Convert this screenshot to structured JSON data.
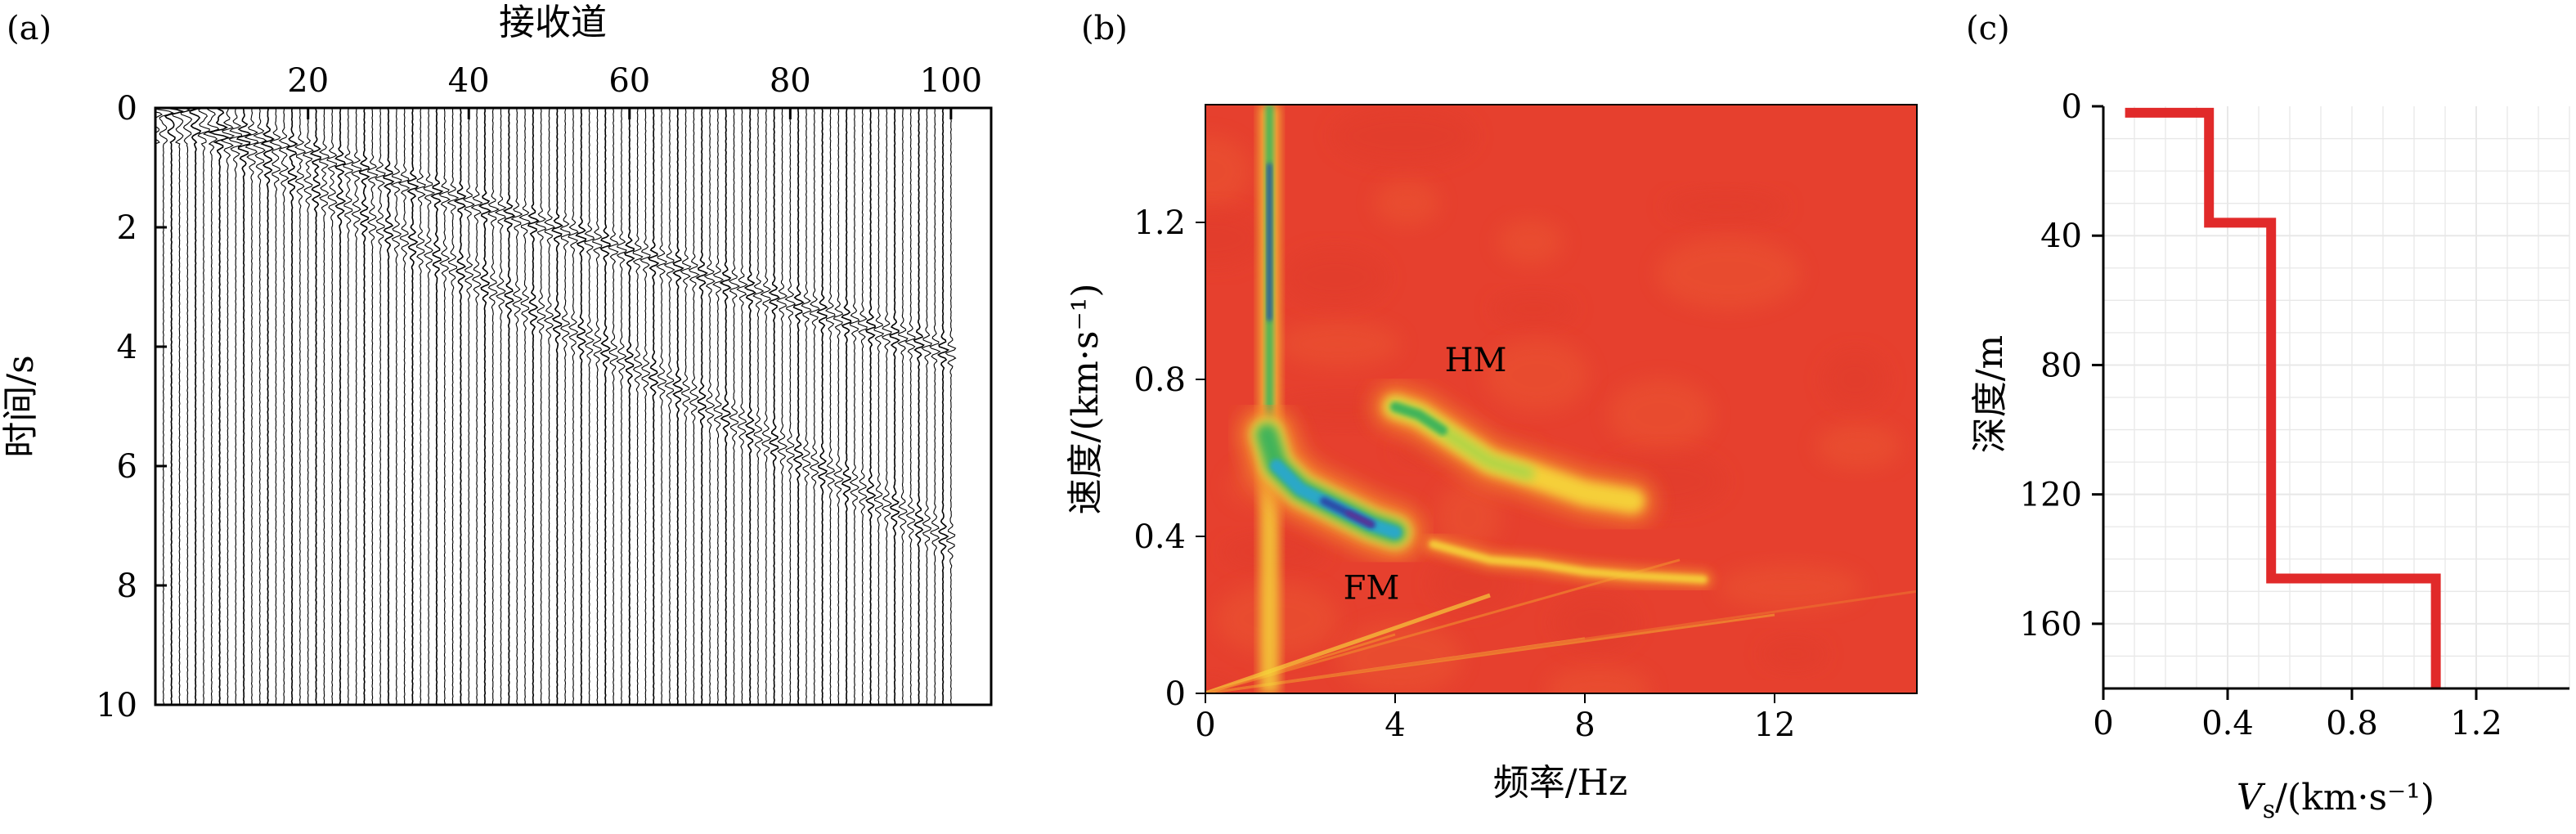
{
  "chart_data": [
    {
      "panel": "(a)",
      "type": "heatmap",
      "xlabel": "接收道",
      "ylabel": "时间/s",
      "xlim": [
        1,
        105
      ],
      "ylim": [
        0,
        10
      ],
      "y_inverted": true,
      "x_axis_position": "top",
      "xticks": [
        20,
        40,
        60,
        80,
        100
      ],
      "yticks": [
        0,
        2,
        4,
        6,
        8,
        10
      ],
      "trace_count": 100,
      "wave_fronts": [
        {
          "start_trace": 3,
          "start_time": 0.05,
          "end_trace": 100,
          "end_time": 4.1
        },
        {
          "start_trace": 3,
          "start_time": 0.05,
          "end_trace": 100,
          "end_time": 7.25
        }
      ]
    },
    {
      "panel": "(b)",
      "type": "heatmap",
      "xlabel": "频率/Hz",
      "ylabel": "速度/(km·s⁻¹)",
      "xlim": [
        0,
        15
      ],
      "ylim": [
        0,
        1.5
      ],
      "xticks": [
        0,
        4,
        8,
        12
      ],
      "yticks": [
        0,
        0.4,
        0.8,
        1.2
      ],
      "annotations": [
        {
          "text": "HM",
          "x": 5.7,
          "y": 0.85
        },
        {
          "text": "FM",
          "x": 3.5,
          "y": 0.27
        }
      ],
      "ridges": [
        {
          "name": "FM",
          "points": [
            [
              1.3,
              0.66
            ],
            [
              1.5,
              0.58
            ],
            [
              2.0,
              0.52
            ],
            [
              2.5,
              0.49
            ],
            [
              3.0,
              0.46
            ],
            [
              3.5,
              0.43
            ],
            [
              4.0,
              0.41
            ]
          ]
        },
        {
          "name": "HM",
          "points": [
            [
              4.0,
              0.73
            ],
            [
              4.5,
              0.71
            ],
            [
              5.0,
              0.67
            ],
            [
              5.5,
              0.63
            ],
            [
              6.0,
              0.59
            ],
            [
              6.8,
              0.56
            ],
            [
              8.0,
              0.51
            ],
            [
              9.0,
              0.49
            ]
          ]
        },
        {
          "name": "",
          "points": [
            [
              4.8,
              0.38
            ],
            [
              6.0,
              0.34
            ],
            [
              7.0,
              0.33
            ],
            [
              8.0,
              0.31
            ],
            [
              9.0,
              0.3
            ],
            [
              10.5,
              0.29
            ]
          ]
        }
      ]
    },
    {
      "panel": "(c)",
      "type": "line",
      "xlabel": "Vs/(km·s⁻¹)",
      "xlabel_main": "V",
      "xlabel_sub": "s",
      "xlabel_rest": "/(km·s⁻¹)",
      "ylabel": "深度/m",
      "xlim": [
        0,
        1.5
      ],
      "ylim": [
        0,
        180
      ],
      "y_inverted": true,
      "xticks": [
        0,
        0.4,
        0.8,
        1.2
      ],
      "yticks": [
        0,
        40,
        80,
        120,
        160
      ],
      "grid": true,
      "series": [
        {
          "values": [
            [
              0.07,
              2
            ],
            [
              0.34,
              2
            ],
            [
              0.34,
              36
            ],
            [
              0.54,
              36
            ],
            [
              0.54,
              146
            ],
            [
              1.07,
              146
            ],
            [
              1.07,
              180
            ]
          ],
          "color": "#e12a2a"
        }
      ]
    }
  ],
  "colors": {
    "heatmap_background": "#e6402e",
    "ridge_color_scale": [
      "#e6402e",
      "#f2862e",
      "#f6d93a",
      "#a8d64a",
      "#3fb45a",
      "#2aa8c8",
      "#2b4aa8",
      "#6a2a90"
    ],
    "profile_line": "#e12a2a"
  }
}
